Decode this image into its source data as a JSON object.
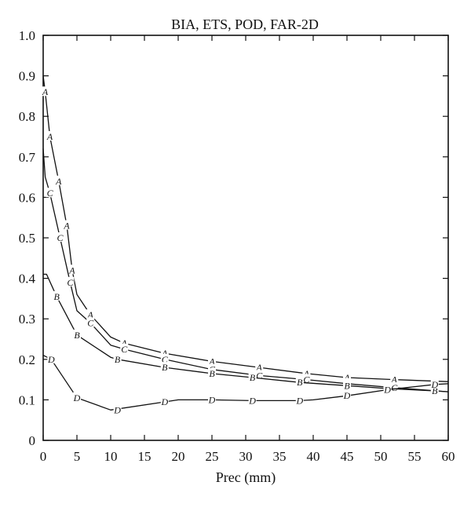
{
  "chart_data": {
    "type": "line",
    "title": "BIA, ETS, POD, FAR-2D",
    "xlabel": "Prec (mm)",
    "ylabel": "",
    "xlim": [
      0,
      60
    ],
    "ylim": [
      0,
      1.0
    ],
    "xticks": [
      "0",
      "5",
      "10",
      "15",
      "20",
      "25",
      "30",
      "35",
      "40",
      "45",
      "50",
      "55",
      "60"
    ],
    "yticks": [
      "0",
      "0.1",
      "0.2",
      "0.3",
      "0.4",
      "0.5",
      "0.6",
      "0.7",
      "0.8",
      "0.9",
      "1.0"
    ],
    "grid": false,
    "legend": "none",
    "series": [
      {
        "name": "A",
        "x": [
          0,
          0.3,
          1,
          2.3,
          3.5,
          4.3,
          5,
          7,
          10,
          12,
          18,
          25,
          32,
          39,
          45,
          52,
          60
        ],
        "y": [
          0.9,
          0.86,
          0.75,
          0.64,
          0.53,
          0.42,
          0.36,
          0.31,
          0.255,
          0.24,
          0.215,
          0.195,
          0.18,
          0.165,
          0.155,
          0.15,
          0.145
        ],
        "markers": [
          [
            0.3,
            0.86
          ],
          [
            1,
            0.75
          ],
          [
            2.3,
            0.64
          ],
          [
            3.5,
            0.53
          ],
          [
            4.3,
            0.42
          ],
          [
            7,
            0.31
          ],
          [
            12,
            0.24
          ],
          [
            18,
            0.215
          ],
          [
            25,
            0.195
          ],
          [
            32,
            0.18
          ],
          [
            39,
            0.165
          ],
          [
            45,
            0.155
          ],
          [
            52,
            0.15
          ]
        ]
      },
      {
        "name": "C",
        "x": [
          0,
          0.3,
          1,
          2.5,
          4,
          5,
          7,
          10,
          12,
          18,
          25,
          32,
          39,
          45,
          52,
          60
        ],
        "y": [
          0.72,
          0.65,
          0.61,
          0.5,
          0.39,
          0.32,
          0.29,
          0.235,
          0.225,
          0.2,
          0.175,
          0.16,
          0.15,
          0.14,
          0.13,
          0.12
        ],
        "markers": [
          [
            1,
            0.61
          ],
          [
            2.5,
            0.5
          ],
          [
            4,
            0.39
          ],
          [
            7,
            0.29
          ],
          [
            12,
            0.225
          ],
          [
            18,
            0.2
          ],
          [
            25,
            0.175
          ],
          [
            32,
            0.16
          ],
          [
            39,
            0.15
          ],
          [
            45,
            0.14
          ],
          [
            52,
            0.13
          ]
        ]
      },
      {
        "name": "B",
        "x": [
          0,
          0.5,
          2,
          5,
          10,
          11,
          18,
          25,
          31,
          38,
          45,
          51,
          58,
          60
        ],
        "y": [
          0.41,
          0.41,
          0.355,
          0.26,
          0.205,
          0.2,
          0.18,
          0.165,
          0.155,
          0.143,
          0.135,
          0.128,
          0.122,
          0.12
        ],
        "markers": [
          [
            2,
            0.355
          ],
          [
            5,
            0.26
          ],
          [
            11,
            0.2
          ],
          [
            18,
            0.18
          ],
          [
            25,
            0.165
          ],
          [
            31,
            0.155
          ],
          [
            38,
            0.143
          ],
          [
            45,
            0.135
          ],
          [
            51,
            0.128
          ],
          [
            58,
            0.122
          ]
        ]
      },
      {
        "name": "D",
        "x": [
          0,
          1.2,
          5,
          10,
          18,
          20,
          25,
          31,
          38,
          40,
          45,
          51,
          58,
          60
        ],
        "y": [
          0.21,
          0.2,
          0.105,
          0.075,
          0.095,
          0.1,
          0.1,
          0.098,
          0.098,
          0.1,
          0.11,
          0.125,
          0.138,
          0.14
        ],
        "markers": [
          [
            1.2,
            0.2
          ],
          [
            5,
            0.105
          ],
          [
            11,
            0.075
          ],
          [
            18,
            0.095
          ],
          [
            25,
            0.1
          ],
          [
            31,
            0.098
          ],
          [
            38,
            0.098
          ],
          [
            45,
            0.11
          ],
          [
            51,
            0.125
          ],
          [
            58,
            0.138
          ]
        ]
      }
    ]
  }
}
